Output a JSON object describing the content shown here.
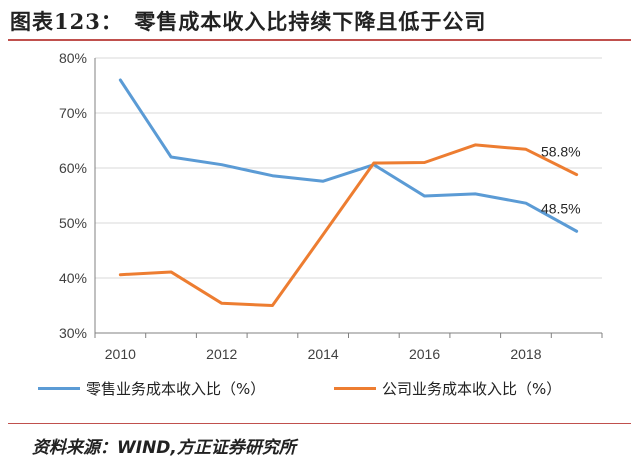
{
  "header": {
    "title": "图表123：　零售成本收入比持续下降且低于公司"
  },
  "footer": {
    "source": "资料来源：WIND,方正证券研究所"
  },
  "legend": {
    "retail": "零售业务成本收入比（%）",
    "company": "公司业务成本收入比（%）"
  },
  "colors": {
    "retail": "#5b9bd5",
    "company": "#ed7d31",
    "accent": "#c0504d"
  },
  "chart_data": {
    "type": "line",
    "title": "",
    "xlabel": "",
    "ylabel": "",
    "x": [
      2010,
      2011,
      2012,
      2013,
      2014,
      2015,
      2016,
      2017,
      2018,
      2019
    ],
    "x_tick_labels": [
      "2010",
      "2012",
      "2014",
      "2016",
      "2018"
    ],
    "x_tick_values": [
      2010,
      2012,
      2014,
      2016,
      2018
    ],
    "xlim": [
      2009.5,
      2019.5
    ],
    "ylim": [
      30,
      80
    ],
    "y_tick_values": [
      30,
      40,
      50,
      60,
      70,
      80
    ],
    "y_tick_labels": [
      "30%",
      "40%",
      "50%",
      "60%",
      "70%",
      "80%"
    ],
    "grid": "horizontal",
    "legend_position": "bottom",
    "series": [
      {
        "name": "零售业务成本收入比（%）",
        "key": "retail",
        "values": [
          76.0,
          62.0,
          60.6,
          58.6,
          57.6,
          60.6,
          54.9,
          55.3,
          53.6,
          48.5
        ],
        "end_label": "48.5%"
      },
      {
        "name": "公司业务成本收入比（%）",
        "key": "company",
        "values": [
          40.6,
          41.1,
          35.4,
          35.0,
          47.9,
          60.9,
          61.0,
          64.2,
          63.4,
          58.8
        ],
        "end_label": "58.8%"
      }
    ]
  }
}
